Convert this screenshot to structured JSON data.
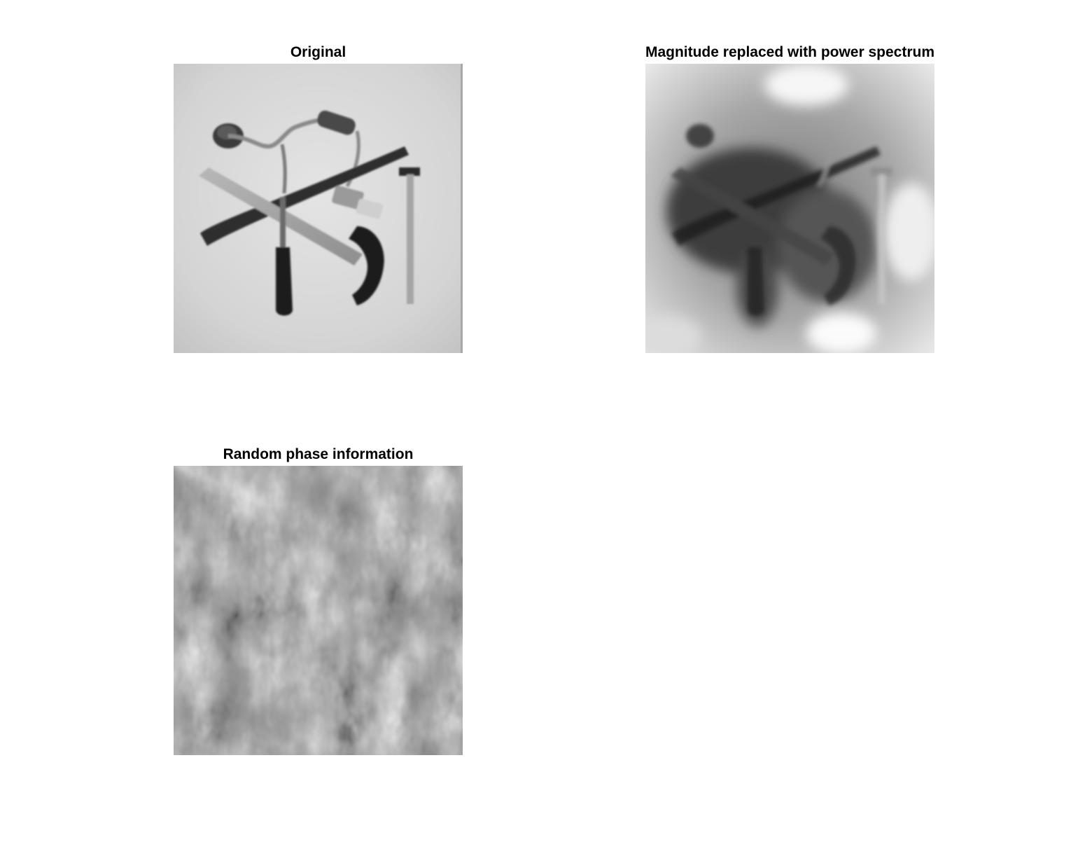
{
  "figure": {
    "panels": [
      {
        "id": "original",
        "title": "Original",
        "content": "grayscale photo of hand tools on a light background"
      },
      {
        "id": "magnitude",
        "title": "Magnitude replaced with power spectrum",
        "content": "blurred grayscale reconstruction of the tools image"
      },
      {
        "id": "random",
        "title": "Random phase information",
        "content": "grayscale noise texture"
      }
    ]
  }
}
